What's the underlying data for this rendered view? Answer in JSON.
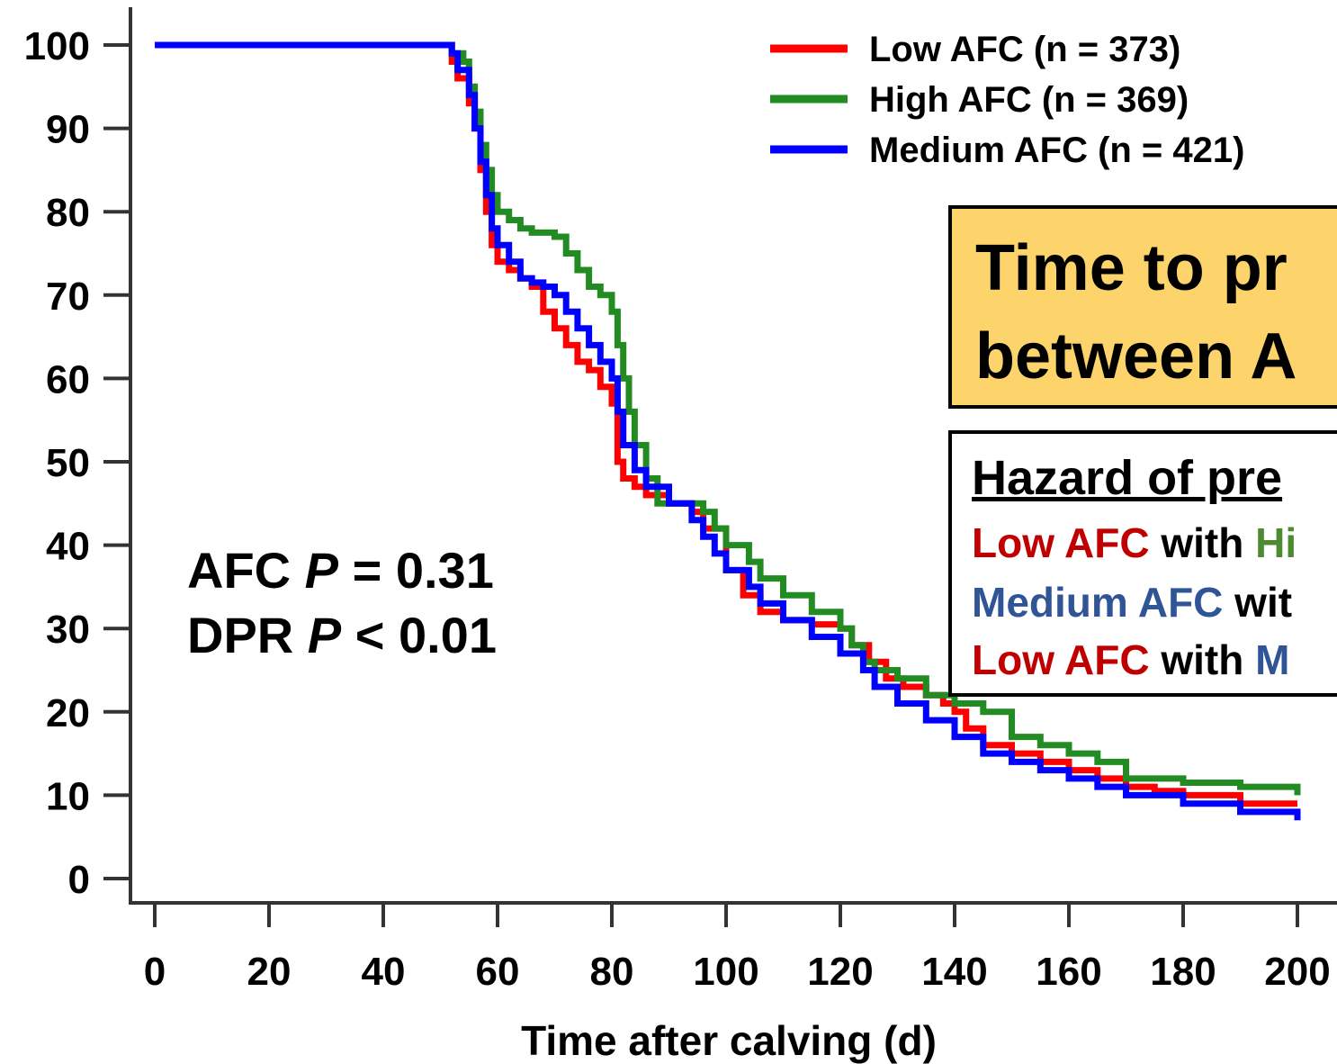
{
  "chart_data": {
    "type": "line",
    "step": true,
    "xlabel": "Time after calving (d)",
    "ylabel": "",
    "xlim": [
      0,
      200
    ],
    "ylim": [
      0,
      100
    ],
    "xticks": [
      0,
      20,
      40,
      60,
      80,
      100,
      120,
      140,
      160,
      180,
      200
    ],
    "yticks": [
      0,
      10,
      20,
      30,
      40,
      50,
      60,
      70,
      80,
      90,
      100
    ],
    "grid": false,
    "legend_position": "top-right",
    "series": [
      {
        "name": "Low AFC (n = 373)",
        "color": "#ff0000",
        "x": [
          0,
          50,
          52,
          53,
          55,
          56,
          57,
          58,
          59,
          60,
          62,
          64,
          66,
          68,
          70,
          72,
          74,
          76,
          78,
          80,
          81,
          82,
          84,
          86,
          88,
          90,
          94,
          96,
          100,
          103,
          106,
          110,
          115,
          120,
          122,
          125,
          128,
          131,
          135,
          138,
          140,
          142,
          145,
          150,
          155,
          160,
          165,
          170,
          175,
          180,
          190,
          200
        ],
        "y": [
          100,
          100,
          98,
          96,
          93,
          90,
          85,
          80,
          76,
          74,
          73,
          72,
          71,
          68,
          66,
          64,
          62,
          61,
          59,
          57,
          50,
          48,
          47,
          46,
          46,
          45,
          44,
          42,
          37,
          34,
          32,
          31,
          30.5,
          30,
          28,
          26,
          24,
          23,
          22,
          21,
          20,
          18,
          16,
          15,
          14,
          13,
          12,
          11,
          10.5,
          10,
          9,
          9
        ]
      },
      {
        "name": "High AFC (n = 369)",
        "color": "#228b22",
        "x": [
          0,
          50,
          52,
          54,
          55,
          56,
          57,
          58,
          59,
          60,
          62,
          64,
          66,
          70,
          72,
          74,
          76,
          78,
          80,
          81,
          82,
          83,
          84,
          86,
          88,
          96,
          98,
          100,
          104,
          106,
          110,
          115,
          120,
          122,
          124,
          126,
          130,
          135,
          140,
          145,
          150,
          155,
          160,
          165,
          170,
          180,
          190,
          200
        ],
        "y": [
          100,
          100,
          99,
          98,
          95,
          92,
          88,
          85,
          82,
          80,
          79,
          78,
          77.5,
          77,
          75,
          73,
          71,
          70,
          68,
          64,
          60,
          56,
          52,
          48,
          45,
          44,
          42,
          40,
          38,
          36,
          34,
          32,
          30,
          28,
          26,
          25,
          24,
          22,
          21,
          20,
          17,
          16,
          15,
          14,
          12,
          11.5,
          11,
          10
        ]
      },
      {
        "name": "Medium AFC (n = 421)",
        "color": "#0000ff",
        "x": [
          0,
          50,
          52,
          53,
          55,
          56,
          57,
          58,
          59,
          60,
          62,
          64,
          66,
          68,
          70,
          72,
          74,
          76,
          78,
          80,
          81,
          82,
          84,
          86,
          90,
          94,
          96,
          98,
          100,
          104,
          106,
          110,
          115,
          120,
          124,
          126,
          130,
          135,
          140,
          145,
          150,
          155,
          160,
          165,
          170,
          180,
          190,
          200
        ],
        "y": [
          100,
          100,
          99,
          97,
          94,
          90,
          86,
          82,
          78,
          76,
          74,
          72,
          71.5,
          71,
          70,
          68,
          66,
          64,
          62,
          60,
          56,
          52,
          49,
          47,
          45,
          43,
          41,
          39,
          37,
          35,
          33,
          31,
          29,
          27,
          25,
          23,
          21,
          19,
          17,
          15,
          14,
          13,
          12,
          11,
          10,
          9,
          8,
          7
        ]
      }
    ],
    "annotations": {
      "stats": [
        {
          "label": "AFC",
          "p": "P",
          "value": "= 0.31"
        },
        {
          "label": "DPR",
          "p": "P",
          "value": "< 0.01"
        }
      ],
      "title_box": [
        "Time to pr",
        "between A"
      ],
      "hazard_box": {
        "heading": "Hazard of pre",
        "rows": [
          [
            {
              "text": "Low AFC",
              "color": "#c00000"
            },
            {
              "text": " with ",
              "color": "#000000"
            },
            {
              "text": "Hi",
              "color": "#4e8b30"
            }
          ],
          [
            {
              "text": "Medium AFC",
              "color": "#2f5597"
            },
            {
              "text": " wit",
              "color": "#000000"
            }
          ],
          [
            {
              "text": "Low AFC",
              "color": "#c00000"
            },
            {
              "text": " with ",
              "color": "#000000"
            },
            {
              "text": "M",
              "color": "#2f5597"
            }
          ]
        ]
      }
    }
  }
}
